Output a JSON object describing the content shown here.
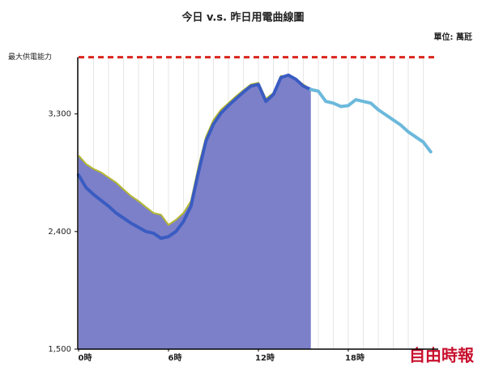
{
  "chart_data": {
    "type": "line",
    "title": "今日 v.s. 昨日用電曲線圖",
    "unit": "單位: 萬瓩",
    "x": [
      0,
      0.5,
      1,
      1.5,
      2,
      2.5,
      3,
      3.5,
      4,
      4.5,
      5,
      5.5,
      6,
      6.5,
      7,
      7.5,
      8,
      8.5,
      9,
      9.5,
      10,
      10.5,
      11,
      11.5,
      12,
      12.5,
      13,
      13.5,
      14,
      14.5,
      15,
      15.5,
      16,
      16.5,
      17,
      17.5,
      18,
      18.5,
      19,
      19.5,
      20,
      20.5,
      21,
      21.5,
      22,
      22.5,
      23,
      23.5
    ],
    "series": [
      {
        "kind": "area",
        "color": "#7c80c9",
        "edge_color": "#b5b832",
        "values": [
          2982,
          2917,
          2879,
          2853,
          2814,
          2775,
          2723,
          2672,
          2633,
          2587,
          2542,
          2529,
          2451,
          2490,
          2542,
          2633,
          2898,
          3124,
          3254,
          3332,
          3383,
          3435,
          3481,
          3526,
          3539,
          3416,
          3461,
          3591,
          3591,
          3565,
          3526,
          3487,
          null,
          null,
          null,
          null,
          null,
          null,
          null,
          null,
          null,
          null,
          null,
          null,
          null,
          null,
          null,
          null
        ]
      },
      {
        "kind": "line",
        "color": "#3a5cc2",
        "values": [
          2833,
          2736,
          2684,
          2639,
          2594,
          2542,
          2503,
          2464,
          2432,
          2400,
          2387,
          2348,
          2361,
          2400,
          2477,
          2594,
          2853,
          3092,
          3222,
          3306,
          3364,
          3416,
          3467,
          3513,
          3526,
          3396,
          3448,
          3578,
          3597,
          3565,
          3513,
          3487,
          null,
          null,
          null,
          null,
          null,
          null,
          null,
          null,
          null,
          null,
          null,
          null,
          null,
          null,
          null,
          null
        ]
      },
      {
        "kind": "line",
        "color": "#6cb9dc",
        "values": [
          null,
          null,
          null,
          null,
          null,
          null,
          null,
          null,
          null,
          null,
          null,
          null,
          null,
          null,
          null,
          null,
          null,
          null,
          null,
          null,
          null,
          null,
          null,
          null,
          null,
          null,
          null,
          null,
          null,
          null,
          null,
          3487,
          3474,
          3396,
          3383,
          3357,
          3364,
          3409,
          3396,
          3383,
          3332,
          3293,
          3254,
          3215,
          3163,
          3124,
          3085,
          3010
        ]
      }
    ],
    "max_capacity": {
      "label": "最大供電能力",
      "value": 3734,
      "color": "#d9261c"
    },
    "xlim": [
      0,
      24
    ],
    "xticks": [
      {
        "value": 0,
        "label": "0時"
      },
      {
        "value": 6,
        "label": "6時"
      },
      {
        "value": 12,
        "label": "12時"
      },
      {
        "value": 18,
        "label": "18時"
      }
    ],
    "ylim": [
      1500,
      3800
    ],
    "yticks": [
      {
        "value": 1500,
        "label": "1,500"
      },
      {
        "value": 2400,
        "label": "2,400"
      },
      {
        "value": 3300,
        "label": "3,300"
      }
    ],
    "xgrid": true
  },
  "watermark": "自由時報"
}
